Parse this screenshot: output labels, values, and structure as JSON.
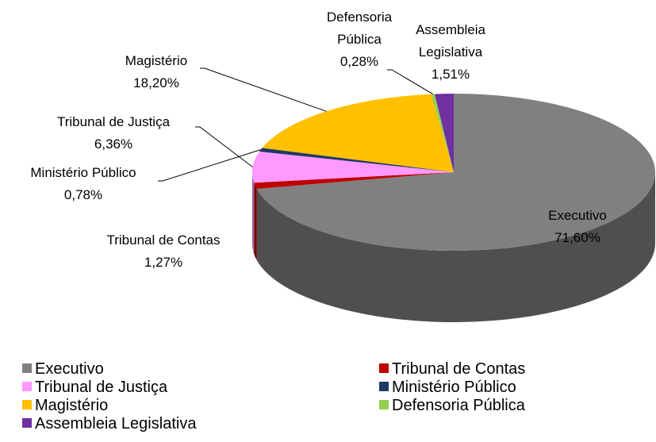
{
  "chart_data": {
    "type": "pie",
    "legend": "bottom",
    "categories": [
      "Executivo",
      "Tribunal de Contas",
      "Tribunal de Justiça",
      "Ministério Público",
      "Magistério",
      "Defensoria Pública",
      "Assembleia Legislativa"
    ],
    "values": [
      71.6,
      1.27,
      6.36,
      0.78,
      18.2,
      0.28,
      1.51
    ],
    "value_labels": [
      "71,60%",
      "1,27%",
      "6,36%",
      "0,78%",
      "18,20%",
      "0,28%",
      "1,51%"
    ],
    "colors": [
      "#808080",
      "#c00000",
      "#ff99ff",
      "#1f3864",
      "#ffc000",
      "#92d050",
      "#7030a0"
    ]
  }
}
